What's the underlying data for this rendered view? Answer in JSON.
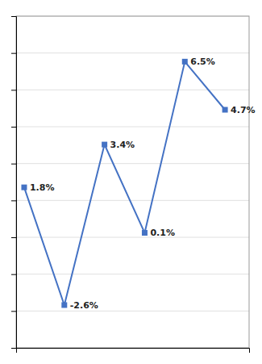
{
  "chart_data": {
    "type": "line",
    "x": [
      0,
      1,
      2,
      3,
      4,
      5
    ],
    "values": [
      1.8,
      -2.6,
      3.4,
      0.1,
      6.5,
      4.7
    ],
    "value_labels": [
      "1.8%",
      "-2.6%",
      "3.4%",
      "0.1%",
      "6.5%",
      "4.7%"
    ],
    "data_labels": true,
    "color": "#4472C4",
    "marker": "square",
    "xlim": [
      -0.2,
      5.6
    ],
    "ylim": [
      -4.2,
      8.2
    ],
    "yticks": [
      -4.2,
      -2.822222222222222,
      -1.4444444444444444,
      -0.06666666666666665,
      1.3111111111111111,
      2.688888888888889,
      4.066666666666666,
      5.444444444444445,
      6.822222222222222,
      8.2
    ],
    "grid": true,
    "tick_labels": false
  }
}
